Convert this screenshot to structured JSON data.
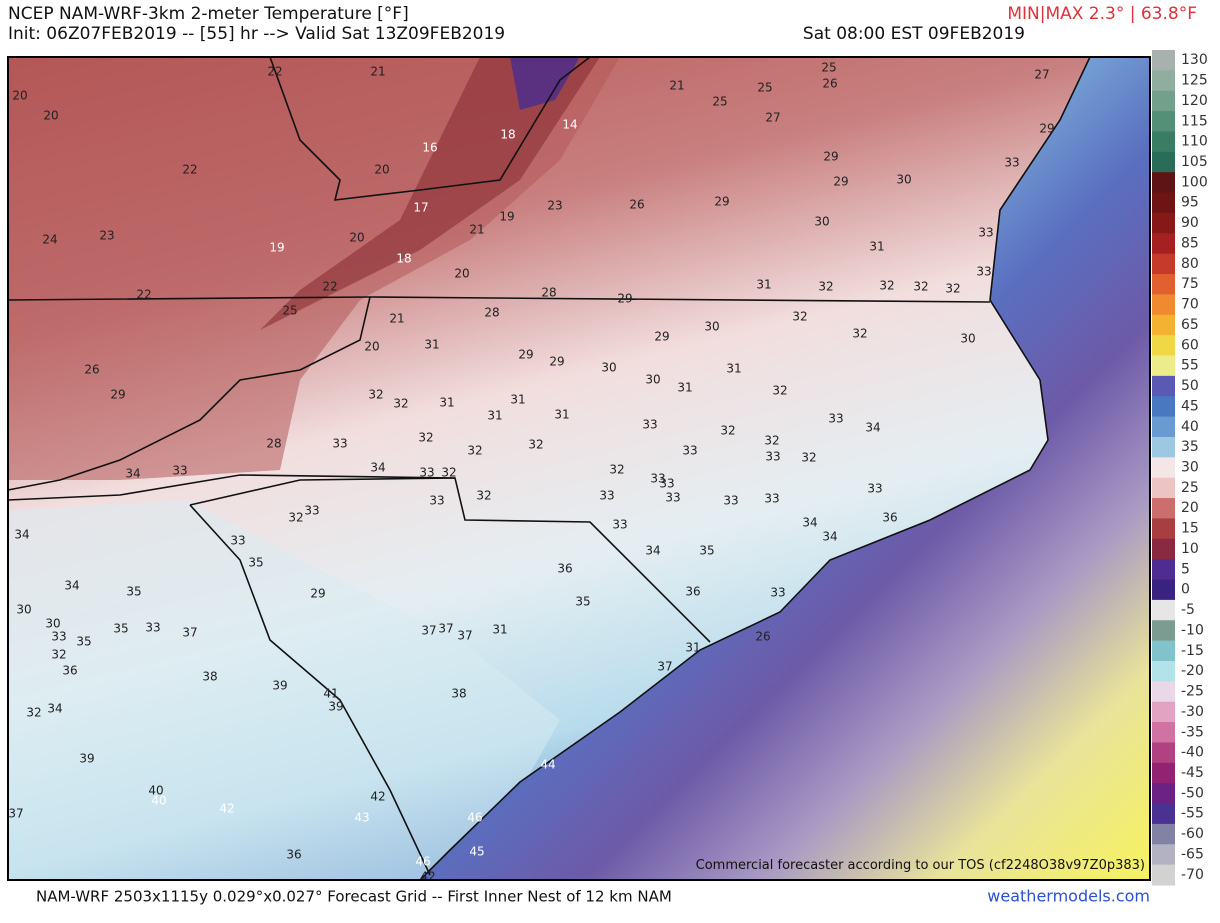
{
  "header": {
    "title": "NCEP NAM-WRF-3km 2-meter Temperature [°F]",
    "init": "Init: 06Z07FEB2019 -- [55] hr --> Valid Sat 13Z09FEB2019",
    "valid": "Sat 08:00 EST 09FEB2019",
    "minmax": "MIN|MAX 2.3° | 63.8°F"
  },
  "map": {
    "station_values": [
      20,
      20,
      21,
      22,
      16,
      18,
      14,
      20,
      17,
      19,
      21,
      23,
      26,
      21,
      25,
      25,
      25,
      26,
      27,
      29,
      29,
      30,
      29,
      30,
      31,
      22,
      24,
      23,
      19,
      20,
      18,
      20,
      22,
      22,
      28,
      29,
      31,
      32,
      32,
      32,
      32,
      25,
      21,
      28,
      29,
      30,
      32,
      32,
      20,
      31,
      29,
      29,
      30,
      30,
      31,
      31,
      26,
      29,
      32,
      32,
      31,
      31,
      31,
      31,
      33,
      32,
      32,
      33,
      34,
      28,
      33,
      32,
      32,
      32,
      33,
      32,
      33,
      32,
      34,
      33,
      34,
      33,
      32,
      32,
      33,
      33,
      32,
      33,
      33,
      33,
      33,
      33,
      34,
      33,
      36,
      32,
      33,
      33,
      34,
      33,
      35,
      34,
      34,
      35,
      36,
      35,
      36,
      33,
      34,
      35,
      29,
      30,
      30,
      33,
      35,
      35,
      33,
      37,
      37,
      37,
      37,
      31,
      32,
      36,
      38,
      39,
      41,
      39,
      38,
      37,
      31,
      32,
      34,
      39,
      40,
      40,
      42,
      42,
      43,
      44,
      46,
      45,
      46,
      42,
      36,
      37,
      26,
      27,
      29,
      33,
      33,
      33,
      30
    ]
  },
  "colorbar": {
    "levels": [
      130,
      125,
      120,
      115,
      110,
      105,
      100,
      95,
      90,
      85,
      80,
      75,
      70,
      65,
      60,
      55,
      50,
      45,
      40,
      35,
      30,
      25,
      20,
      15,
      10,
      5,
      0,
      -5,
      -10,
      -15,
      -20,
      -25,
      -30,
      -35,
      -40,
      -45,
      -50,
      -55,
      -60,
      -65,
      -70
    ],
    "colors": [
      "#a7b2ae",
      "#8fae9f",
      "#72a08a",
      "#548f77",
      "#3a7d65",
      "#2a6c57",
      "#5e1414",
      "#6e1414",
      "#861818",
      "#a52020",
      "#c63a2a",
      "#e0602f",
      "#f08a30",
      "#f4b233",
      "#f0d745",
      "#ecec8a",
      "#5a5ab4",
      "#4a78c0",
      "#6a9ad2",
      "#9cc8e2",
      "#f4e6e6",
      "#ecc4c4",
      "#cc6e6e",
      "#a83e42",
      "#8a2a40",
      "#4e2c92",
      "#3a2280",
      "#e6e6e6",
      "#7c9c92",
      "#82c2ca",
      "#b4e2ea",
      "#ead8e8",
      "#e2a2c2",
      "#d072a2",
      "#b04282",
      "#922272",
      "#6c2284",
      "#4a3292",
      "#8282a4",
      "#b2b2c2",
      "#d2d2d2"
    ]
  },
  "watermark": "Commercial forecaster according to our TOS (cf2248O38v97Z0p383)",
  "footer": {
    "grid": "NAM-WRF 2503x1115y 0.029°x0.027° Forecast Grid -- First Inner Nest of 12 km NAM",
    "site": "weathermodels.com"
  }
}
